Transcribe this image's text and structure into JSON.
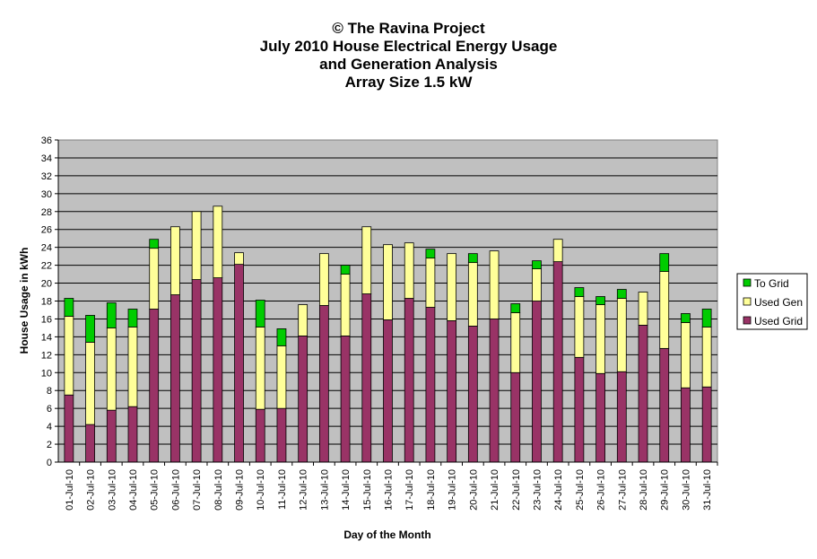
{
  "title_lines": [
    "© The Ravina Project",
    "July 2010 House Electrical Energy Usage",
    "and Generation Analysis",
    "Array Size 1.5 kW"
  ],
  "chart_data": {
    "type": "bar",
    "stacked": true,
    "xlabel": "Day of the Month",
    "ylabel": "House Usage in kWh",
    "ylim": [
      0,
      36
    ],
    "ytick_step": 2,
    "grid": true,
    "legend_position": "right",
    "categories": [
      "01-Jul-10",
      "02-Jul-10",
      "03-Jul-10",
      "04-Jul-10",
      "05-Jul-10",
      "06-Jul-10",
      "07-Jul-10",
      "08-Jul-10",
      "09-Jul-10",
      "10-Jul-10",
      "11-Jul-10",
      "12-Jul-10",
      "13-Jul-10",
      "14-Jul-10",
      "15-Jul-10",
      "16-Jul-10",
      "17-Jul-10",
      "18-Jul-10",
      "19-Jul-10",
      "20-Jul-10",
      "21-Jul-10",
      "22-Jul-10",
      "23-Jul-10",
      "24-Jul-10",
      "25-Jul-10",
      "26-Jul-10",
      "27-Jul-10",
      "28-Jul-10",
      "29-Jul-10",
      "30-Jul-10",
      "31-Jul-10"
    ],
    "series": [
      {
        "name": "Used Grid",
        "color": "#993366",
        "values": [
          7.5,
          4.2,
          5.8,
          6.2,
          17.1,
          18.7,
          20.4,
          20.6,
          22.1,
          5.9,
          6.0,
          14.1,
          17.5,
          14.1,
          18.8,
          15.9,
          18.3,
          17.3,
          15.8,
          15.2,
          16.0,
          10.0,
          18.0,
          22.4,
          11.7,
          9.9,
          10.1,
          15.3,
          12.7,
          8.3,
          8.4
        ]
      },
      {
        "name": "Used Gen",
        "color": "#FFFF99",
        "values": [
          8.8,
          9.2,
          9.2,
          8.9,
          6.8,
          7.6,
          7.6,
          8.0,
          1.3,
          9.2,
          7.0,
          3.5,
          5.8,
          6.9,
          7.5,
          8.4,
          6.2,
          5.5,
          7.5,
          7.1,
          7.6,
          6.7,
          3.6,
          2.5,
          6.8,
          7.7,
          8.2,
          3.7,
          8.6,
          7.3,
          6.7
        ]
      },
      {
        "name": "To Grid",
        "color": "#00CC00",
        "values": [
          2.0,
          3.0,
          2.8,
          2.0,
          1.0,
          0.0,
          0.0,
          0.0,
          0.0,
          3.0,
          1.9,
          0.0,
          0.0,
          1.0,
          0.0,
          0.0,
          0.0,
          1.0,
          0.0,
          1.0,
          0.0,
          1.0,
          0.9,
          0.0,
          1.0,
          0.9,
          1.0,
          0.0,
          2.0,
          1.0,
          2.0
        ]
      }
    ]
  }
}
